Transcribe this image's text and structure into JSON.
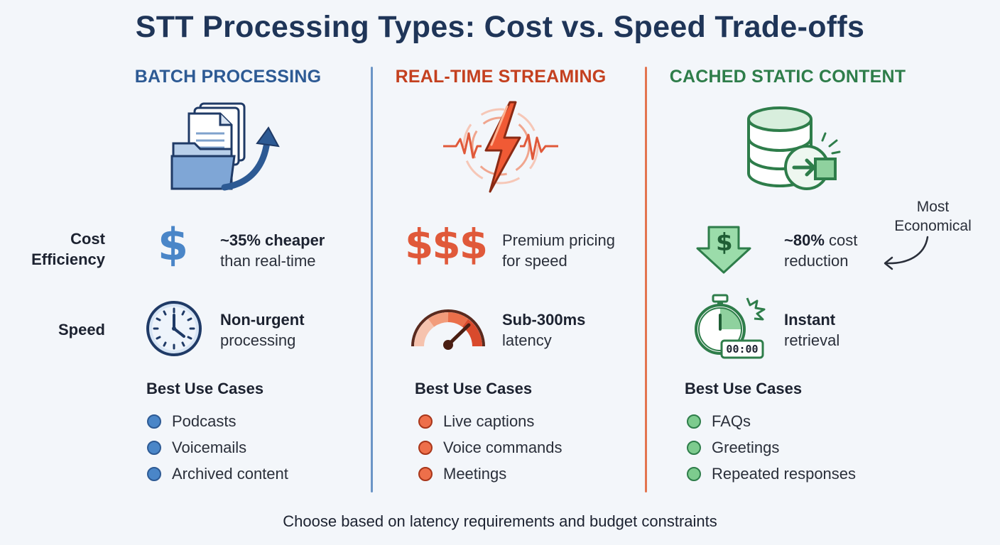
{
  "title": "STT Processing Types: Cost vs. Speed Trade-offs",
  "row_labels": {
    "cost_line1": "Cost",
    "cost_line2": "Efficiency",
    "speed": "Speed"
  },
  "colors": {
    "batch": "#2d5a94",
    "realtime": "#c4401f",
    "cached": "#2e7d4a",
    "title": "#1f3558"
  },
  "columns": [
    {
      "id": "batch",
      "heading": "BATCH PROCESSING",
      "icon": "folder-documents-arrow-icon",
      "cost_icon_text": "$",
      "cost_bold": "~35% cheaper",
      "cost_rest": "than real-time",
      "speed_icon": "clock-icon",
      "speed_bold": "Non-urgent",
      "speed_rest": "processing",
      "use_cases_title": "Best Use Cases",
      "use_cases": [
        "Podcasts",
        "Voicemails",
        "Archived content"
      ]
    },
    {
      "id": "realtime",
      "heading": "REAL-TIME STREAMING",
      "icon": "lightning-wave-icon",
      "cost_icon_text": "$$$",
      "cost_line1": "Premium pricing",
      "cost_line2": "for speed",
      "speed_icon": "speedometer-icon",
      "speed_bold": "Sub-300ms",
      "speed_rest": "latency",
      "use_cases_title": "Best Use Cases",
      "use_cases": [
        "Live captions",
        "Voice commands",
        "Meetings"
      ]
    },
    {
      "id": "cached",
      "heading": "CACHED STATIC CONTENT",
      "icon": "database-cache-icon",
      "cost_icon_text": "$",
      "cost_bold": "~80%",
      "cost_bold_rest": " cost",
      "cost_rest": "reduction",
      "speed_icon": "stopwatch-icon",
      "timer_text": "00:00",
      "speed_bold": "Instant",
      "speed_rest": "retrieval",
      "use_cases_title": "Best Use Cases",
      "use_cases": [
        "FAQs",
        "Greetings",
        "Repeated responses"
      ],
      "note_line1": "Most",
      "note_line2": "Economical"
    }
  ],
  "footer": "Choose based on latency requirements and budget constraints"
}
